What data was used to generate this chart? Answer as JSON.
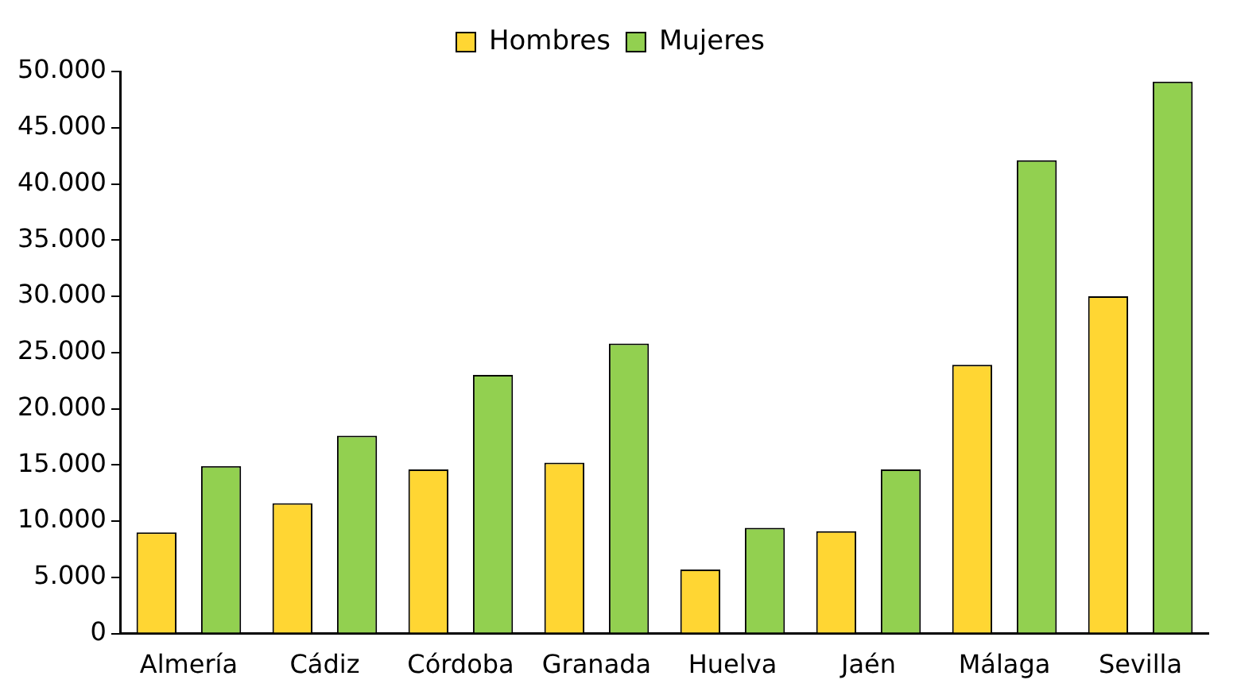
{
  "chart_data": {
    "type": "bar",
    "categories": [
      "Almería",
      "Cádiz",
      "Córdoba",
      "Granada",
      "Huelva",
      "Jaén",
      "Málaga",
      "Sevilla"
    ],
    "series": [
      {
        "name": "Hombres",
        "color": "#ffd633",
        "values": [
          9000,
          11600,
          14600,
          15200,
          5700,
          9100,
          23900,
          30000
        ]
      },
      {
        "name": "Mujeres",
        "color": "#92d050",
        "values": [
          14900,
          17600,
          23000,
          25800,
          9400,
          14600,
          42100,
          49100
        ]
      }
    ],
    "ylim": [
      0,
      50000
    ],
    "yticks": [
      {
        "value": 0,
        "label": "0"
      },
      {
        "value": 5000,
        "label": "5.000"
      },
      {
        "value": 10000,
        "label": "10.000"
      },
      {
        "value": 15000,
        "label": "15.000"
      },
      {
        "value": 20000,
        "label": "20.000"
      },
      {
        "value": 25000,
        "label": "25.000"
      },
      {
        "value": 30000,
        "label": "30.000"
      },
      {
        "value": 35000,
        "label": "35.000"
      },
      {
        "value": 40000,
        "label": "40.000"
      },
      {
        "value": 45000,
        "label": "45.000"
      },
      {
        "value": 50000,
        "label": "50.000"
      }
    ],
    "grid": false,
    "legend": "top"
  }
}
